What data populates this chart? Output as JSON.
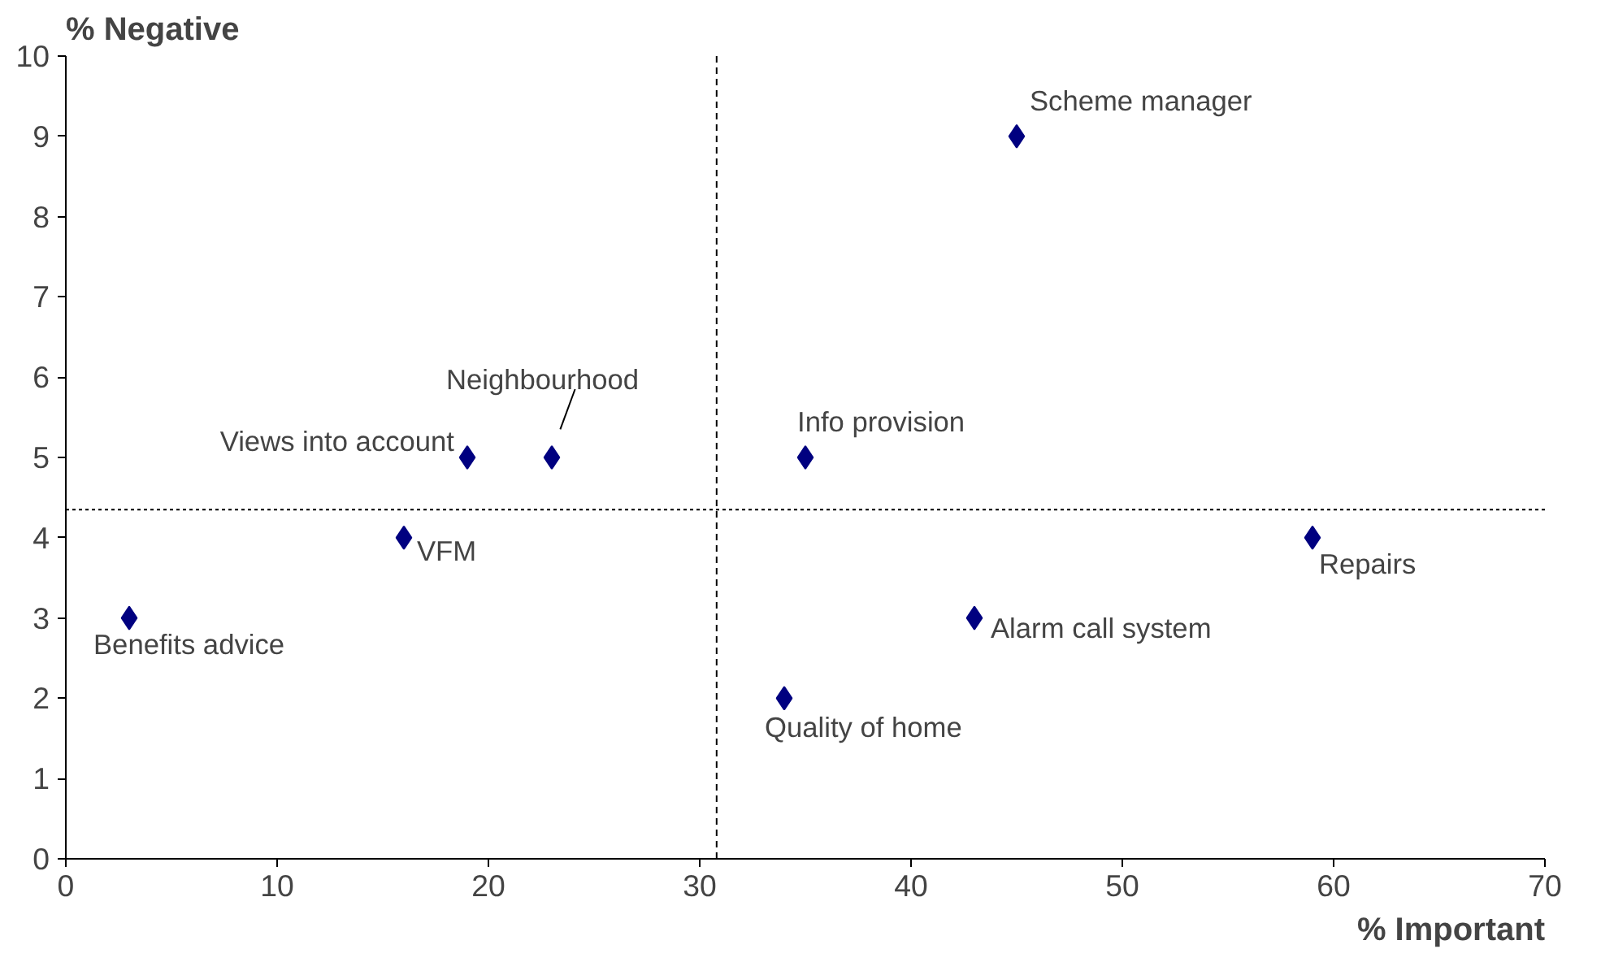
{
  "chart_data": {
    "type": "scatter",
    "xlabel": "% Important",
    "ylabel": "% Negative",
    "x": [
      3,
      16,
      19,
      23,
      35,
      34,
      43,
      45,
      59
    ],
    "series": [
      {
        "color": "#000080",
        "values": [
          3,
          4,
          5,
          5,
          5,
          2,
          3,
          9,
          4
        ]
      }
    ],
    "marker": "diamond",
    "grid": false,
    "xlim": [
      0,
      70
    ],
    "ylim": [
      0,
      10
    ],
    "xticks": [
      0,
      10,
      20,
      30,
      40,
      50,
      60,
      70
    ],
    "yticks": [
      0,
      1,
      2,
      3,
      4,
      5,
      6,
      7,
      8,
      9,
      10
    ],
    "ref_lines": [
      {
        "axis": "x",
        "value": 30.8,
        "line_style": "dashed",
        "color": "#000000"
      },
      {
        "axis": "y",
        "value": 4.35,
        "line_style": "dotted",
        "color": "#000000"
      }
    ],
    "annotations": [
      {
        "text": "Benefits advice",
        "x": 3,
        "y": 3
      },
      {
        "text": "VFM",
        "x": 16,
        "y": 4
      },
      {
        "text": "Views into account",
        "x": 19,
        "y": 5
      },
      {
        "text": "Neighbourhood",
        "x": 23,
        "y": 5
      },
      {
        "text": "Info provision",
        "x": 35,
        "y": 5
      },
      {
        "text": "Quality of home",
        "x": 34,
        "y": 2
      },
      {
        "text": "Alarm call system",
        "x": 43,
        "y": 3
      },
      {
        "text": "Scheme manager",
        "x": 45,
        "y": 9
      },
      {
        "text": "Repairs",
        "x": 59,
        "y": 4
      }
    ]
  }
}
